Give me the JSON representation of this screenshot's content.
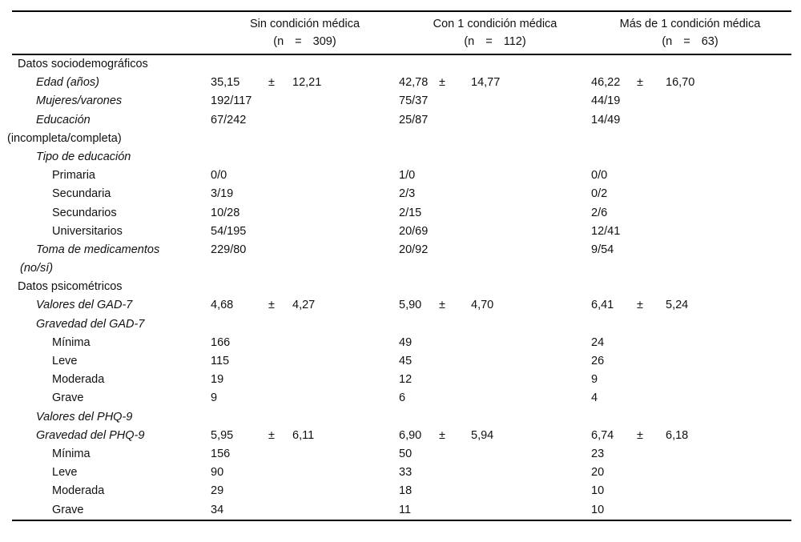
{
  "colors": {
    "text": "#111111",
    "rule": "#000000",
    "background": "#ffffff"
  },
  "table": {
    "columns": [
      {
        "title": "Sin condición médica",
        "n": "(n = 309)"
      },
      {
        "title": "Con 1 condición médica",
        "n": "(n = 112)"
      },
      {
        "title": "Más de 1 condición médica",
        "n": "(n = 63)"
      }
    ],
    "plus_minus_sign": "±",
    "rows": [
      {
        "label": "Datos sociodemográficos",
        "level": "section",
        "values": [
          "",
          "",
          ""
        ]
      },
      {
        "label": "Edad (años)",
        "level": "item",
        "values": [
          "35,15 ± 12,21",
          "42,78 ± 14,77",
          "46,22 ± 16,70"
        ]
      },
      {
        "label": "Mujeres/varones",
        "level": "item",
        "values": [
          "192/117",
          "75/37",
          "44/19"
        ]
      },
      {
        "label": "Educación",
        "level": "item",
        "values": [
          "67/242",
          "25/87",
          "14/49"
        ]
      },
      {
        "label": "(incompleta/completa)",
        "level": "wrap",
        "values": [
          "",
          "",
          ""
        ]
      },
      {
        "label": "Tipo de educación",
        "level": "item",
        "values": [
          "",
          "",
          ""
        ]
      },
      {
        "label": "Primaria",
        "level": "subitem",
        "values": [
          "0/0",
          "1/0",
          "0/0"
        ]
      },
      {
        "label": "Secundaria",
        "level": "subitem",
        "values": [
          "3/19",
          "2/3",
          "0/2"
        ]
      },
      {
        "label": "Secundarios",
        "level": "subitem",
        "values": [
          "10/28",
          "2/15",
          "2/6"
        ]
      },
      {
        "label": "Universitarios",
        "level": "subitem",
        "values": [
          "54/195",
          "20/69",
          "12/41"
        ]
      },
      {
        "label": "Toma de medicamentos",
        "level": "item",
        "values": [
          "229/80",
          "20/92",
          "9/54"
        ]
      },
      {
        "label": "(no/sí)",
        "level": "wrap-item",
        "values": [
          "",
          "",
          ""
        ]
      },
      {
        "label": "Datos psicométricos",
        "level": "section",
        "values": [
          "",
          "",
          ""
        ]
      },
      {
        "label": "Valores del GAD-7",
        "level": "item",
        "values": [
          "4,68 ± 4,27",
          "5,90 ± 4,70",
          "6,41 ± 5,24"
        ]
      },
      {
        "label": "Gravedad del GAD-7",
        "level": "item",
        "values": [
          "",
          "",
          ""
        ]
      },
      {
        "label": "Mínima",
        "level": "subitem",
        "values": [
          "166",
          "49",
          "24"
        ]
      },
      {
        "label": "Leve",
        "level": "subitem",
        "values": [
          "115",
          "45",
          "26"
        ]
      },
      {
        "label": "Moderada",
        "level": "subitem",
        "values": [
          "19",
          "12",
          "9"
        ]
      },
      {
        "label": "Grave",
        "level": "subitem",
        "values": [
          "9",
          "6",
          "4"
        ]
      },
      {
        "label": "Valores del PHQ-9",
        "level": "item",
        "values": [
          "",
          "",
          ""
        ]
      },
      {
        "label": "Gravedad del PHQ-9",
        "level": "item",
        "values": [
          "5,95 ± 6,11",
          "6,90 ± 5,94",
          "6,74 ± 6,18"
        ]
      },
      {
        "label": "Mínima",
        "level": "subitem",
        "values": [
          "156",
          "50",
          "23"
        ]
      },
      {
        "label": "Leve",
        "level": "subitem",
        "values": [
          "90",
          "33",
          "20"
        ]
      },
      {
        "label": "Moderada",
        "level": "subitem",
        "values": [
          "29",
          "18",
          "10"
        ]
      },
      {
        "label": "Grave",
        "level": "subitem",
        "values": [
          "34",
          "11",
          "10"
        ]
      }
    ]
  }
}
